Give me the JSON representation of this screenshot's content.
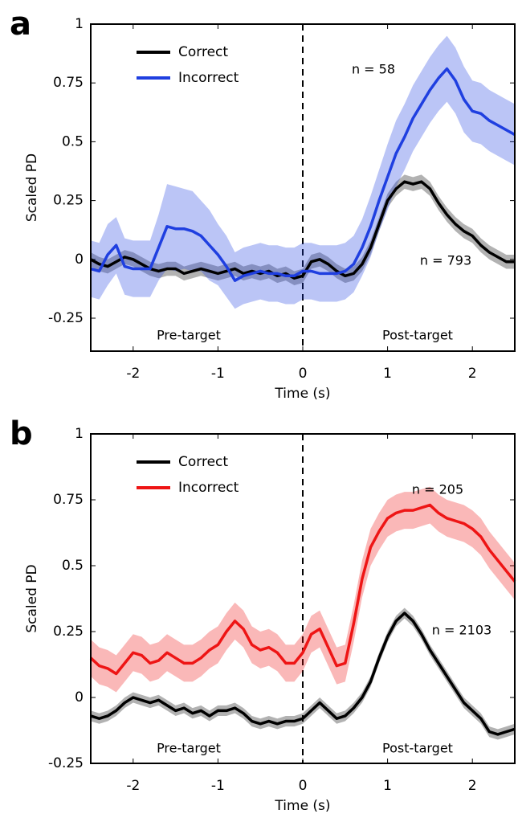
{
  "chart_data": [
    {
      "type": "line",
      "panel_label": "a",
      "x_label": "Time (s)",
      "y_label": "Scaled PD",
      "x": [
        -2.5,
        -2.4,
        -2.3,
        -2.2,
        -2.1,
        -2.0,
        -1.9,
        -1.8,
        -1.7,
        -1.6,
        -1.5,
        -1.4,
        -1.3,
        -1.2,
        -1.1,
        -1.0,
        -0.9,
        -0.8,
        -0.7,
        -0.6,
        -0.5,
        -0.4,
        -0.3,
        -0.2,
        -0.1,
        0,
        0.1,
        0.2,
        0.3,
        0.4,
        0.5,
        0.6,
        0.7,
        0.8,
        0.9,
        1.0,
        1.1,
        1.2,
        1.3,
        1.4,
        1.5,
        1.6,
        1.7,
        1.8,
        1.9,
        2.0,
        2.1,
        2.2,
        2.3,
        2.4,
        2.5
      ],
      "series": [
        {
          "name": "Correct",
          "color": "#000000",
          "values": [
            0,
            -0.02,
            -0.03,
            -0.01,
            0.01,
            0,
            -0.02,
            -0.04,
            -0.05,
            -0.04,
            -0.04,
            -0.06,
            -0.05,
            -0.04,
            -0.05,
            -0.06,
            -0.05,
            -0.04,
            -0.06,
            -0.05,
            -0.06,
            -0.05,
            -0.07,
            -0.06,
            -0.08,
            -0.07,
            -0.01,
            0,
            -0.02,
            -0.05,
            -0.07,
            -0.06,
            -0.02,
            0.05,
            0.15,
            0.25,
            0.3,
            0.33,
            0.32,
            0.33,
            0.3,
            0.24,
            0.19,
            0.15,
            0.12,
            0.1,
            0.06,
            0.03,
            0.01,
            -0.01,
            -0.01
          ],
          "error": [
            0.03,
            0.03,
            0.03,
            0.03,
            0.03,
            0.03,
            0.03,
            0.03,
            0.03,
            0.03,
            0.03,
            0.03,
            0.03,
            0.03,
            0.03,
            0.03,
            0.03,
            0.03,
            0.03,
            0.03,
            0.03,
            0.03,
            0.03,
            0.03,
            0.03,
            0.03,
            0.03,
            0.03,
            0.03,
            0.03,
            0.03,
            0.03,
            0.03,
            0.03,
            0.03,
            0.03,
            0.03,
            0.03,
            0.03,
            0.03,
            0.03,
            0.03,
            0.03,
            0.03,
            0.03,
            0.03,
            0.03,
            0.03,
            0.03,
            0.03,
            0.03
          ]
        },
        {
          "name": "Incorrect",
          "color": "#1f3fe0",
          "values": [
            -0.04,
            -0.05,
            0.02,
            0.06,
            -0.03,
            -0.04,
            -0.04,
            -0.04,
            0.05,
            0.14,
            0.13,
            0.13,
            0.12,
            0.1,
            0.06,
            0.02,
            -0.03,
            -0.09,
            -0.07,
            -0.06,
            -0.05,
            -0.06,
            -0.06,
            -0.07,
            -0.07,
            -0.05,
            -0.05,
            -0.06,
            -0.06,
            -0.06,
            -0.05,
            -0.02,
            0.05,
            0.14,
            0.25,
            0.35,
            0.45,
            0.52,
            0.6,
            0.66,
            0.72,
            0.77,
            0.81,
            0.76,
            0.68,
            0.63,
            0.62,
            0.59,
            0.57,
            0.55,
            0.53
          ],
          "error": [
            0.12,
            0.12,
            0.13,
            0.12,
            0.12,
            0.12,
            0.12,
            0.12,
            0.14,
            0.18,
            0.18,
            0.17,
            0.17,
            0.15,
            0.15,
            0.13,
            0.13,
            0.12,
            0.12,
            0.12,
            0.12,
            0.12,
            0.12,
            0.12,
            0.12,
            0.12,
            0.12,
            0.12,
            0.12,
            0.12,
            0.12,
            0.12,
            0.12,
            0.13,
            0.13,
            0.14,
            0.14,
            0.14,
            0.14,
            0.14,
            0.14,
            0.14,
            0.14,
            0.14,
            0.14,
            0.13,
            0.13,
            0.13,
            0.13,
            0.13,
            0.13
          ]
        }
      ],
      "xlim": [
        -2.5,
        2.5
      ],
      "xticks": [
        -2,
        -1,
        0,
        1,
        2
      ],
      "ylim": [
        -0.39,
        1
      ],
      "yticks": [
        -0.25,
        0,
        0.25,
        0.5,
        0.75,
        1
      ],
      "vline": 0,
      "annotations": [
        {
          "text": "n = 58",
          "color": "#1f3fe0"
        },
        {
          "text": "n = 793",
          "color": "#000000"
        },
        {
          "text": "Pre-target",
          "color": "#000000"
        },
        {
          "text": "Post-target",
          "color": "#000000"
        }
      ]
    },
    {
      "type": "line",
      "panel_label": "b",
      "x_label": "Time (s)",
      "y_label": "Scaled PD",
      "x": [
        -2.5,
        -2.4,
        -2.3,
        -2.2,
        -2.1,
        -2.0,
        -1.9,
        -1.8,
        -1.7,
        -1.6,
        -1.5,
        -1.4,
        -1.3,
        -1.2,
        -1.1,
        -1.0,
        -0.9,
        -0.8,
        -0.7,
        -0.6,
        -0.5,
        -0.4,
        -0.3,
        -0.2,
        -0.1,
        0,
        0.1,
        0.2,
        0.3,
        0.4,
        0.5,
        0.6,
        0.7,
        0.8,
        0.9,
        1.0,
        1.1,
        1.2,
        1.3,
        1.4,
        1.5,
        1.6,
        1.7,
        1.8,
        1.9,
        2.0,
        2.1,
        2.2,
        2.3,
        2.4,
        2.5
      ],
      "series": [
        {
          "name": "Correct",
          "color": "#000000",
          "values": [
            -0.07,
            -0.08,
            -0.07,
            -0.05,
            -0.02,
            0,
            -0.01,
            -0.02,
            -0.01,
            -0.03,
            -0.05,
            -0.04,
            -0.06,
            -0.05,
            -0.07,
            -0.05,
            -0.05,
            -0.04,
            -0.06,
            -0.09,
            -0.1,
            -0.09,
            -0.1,
            -0.09,
            -0.09,
            -0.08,
            -0.05,
            -0.02,
            -0.05,
            -0.08,
            -0.07,
            -0.04,
            0,
            0.06,
            0.15,
            0.23,
            0.29,
            0.32,
            0.29,
            0.24,
            0.18,
            0.13,
            0.08,
            0.03,
            -0.02,
            -0.05,
            -0.08,
            -0.13,
            -0.14,
            -0.13,
            -0.12
          ],
          "error": [
            0.02,
            0.02,
            0.02,
            0.02,
            0.02,
            0.02,
            0.02,
            0.02,
            0.02,
            0.02,
            0.02,
            0.02,
            0.02,
            0.02,
            0.02,
            0.02,
            0.02,
            0.02,
            0.02,
            0.02,
            0.02,
            0.02,
            0.02,
            0.02,
            0.02,
            0.02,
            0.02,
            0.02,
            0.02,
            0.02,
            0.02,
            0.02,
            0.02,
            0.02,
            0.02,
            0.02,
            0.02,
            0.02,
            0.02,
            0.02,
            0.02,
            0.02,
            0.02,
            0.02,
            0.02,
            0.02,
            0.02,
            0.02,
            0.02,
            0.02,
            0.02
          ]
        },
        {
          "name": "Incorrect",
          "color": "#ee1515",
          "values": [
            0.15,
            0.12,
            0.11,
            0.09,
            0.13,
            0.17,
            0.16,
            0.13,
            0.14,
            0.17,
            0.15,
            0.13,
            0.13,
            0.15,
            0.18,
            0.2,
            0.25,
            0.29,
            0.26,
            0.2,
            0.18,
            0.19,
            0.17,
            0.13,
            0.13,
            0.17,
            0.24,
            0.26,
            0.19,
            0.12,
            0.13,
            0.28,
            0.45,
            0.57,
            0.63,
            0.68,
            0.7,
            0.71,
            0.71,
            0.72,
            0.73,
            0.7,
            0.68,
            0.67,
            0.66,
            0.64,
            0.61,
            0.56,
            0.52,
            0.48,
            0.44
          ],
          "error": [
            0.07,
            0.07,
            0.07,
            0.07,
            0.07,
            0.07,
            0.07,
            0.07,
            0.07,
            0.07,
            0.07,
            0.07,
            0.07,
            0.07,
            0.07,
            0.07,
            0.07,
            0.07,
            0.07,
            0.07,
            0.07,
            0.07,
            0.07,
            0.07,
            0.07,
            0.07,
            0.07,
            0.07,
            0.07,
            0.07,
            0.07,
            0.07,
            0.07,
            0.07,
            0.07,
            0.07,
            0.07,
            0.07,
            0.07,
            0.07,
            0.07,
            0.07,
            0.07,
            0.07,
            0.07,
            0.07,
            0.07,
            0.07,
            0.07,
            0.07,
            0.07
          ]
        }
      ],
      "xlim": [
        -2.5,
        2.5
      ],
      "xticks": [
        -2,
        -1,
        0,
        1,
        2
      ],
      "ylim": [
        -0.25,
        1
      ],
      "yticks": [
        -0.25,
        0,
        0.25,
        0.5,
        0.75,
        1
      ],
      "vline": 0,
      "annotations": [
        {
          "text": "n = 205",
          "color": "#ee1515"
        },
        {
          "text": "n = 2103",
          "color": "#000000"
        },
        {
          "text": "Pre-target",
          "color": "#000000"
        },
        {
          "text": "Post-target",
          "color": "#000000"
        }
      ]
    }
  ]
}
